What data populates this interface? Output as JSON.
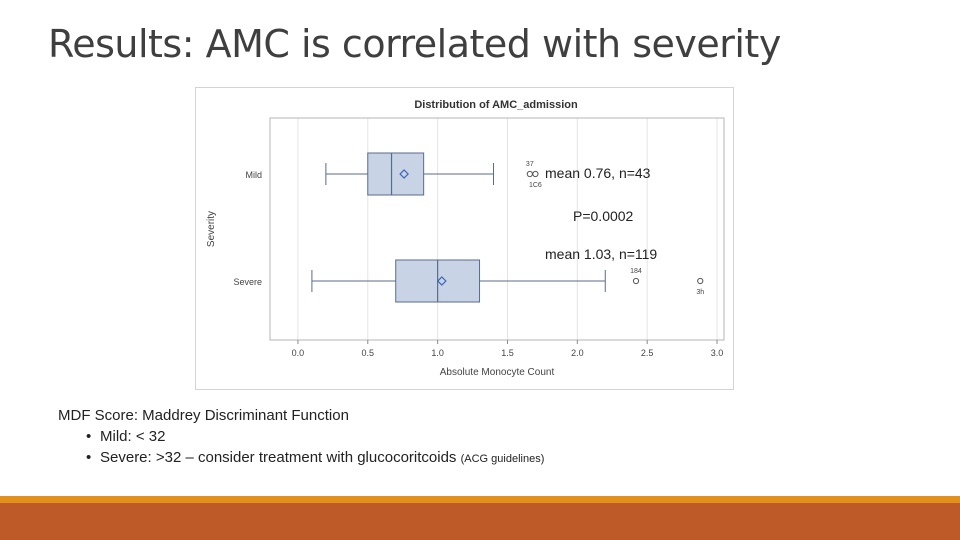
{
  "slide": {
    "title": "Results: AMC is correlated with severity"
  },
  "annotations": {
    "mild_stats": "mean 0.76, n=43",
    "p_value": "P=0.0002",
    "severe_stats": "mean 1.03, n=119"
  },
  "notes": {
    "heading": "MDF Score: Maddrey Discriminant Function",
    "items": [
      {
        "text": "Mild: < 32",
        "small": ""
      },
      {
        "text": "Severe: >32 – consider treatment with glucocoritcoids ",
        "small": "(ACG guidelines)"
      }
    ]
  },
  "colors": {
    "box_fill": "#c8d3e6",
    "box_stroke": "#5a6b8a",
    "mean_marker": "#3a62b8",
    "accent_gold": "#e3901d",
    "accent_rust": "#be5a28"
  },
  "chart_data": {
    "type": "boxplot",
    "title": "Distribution of AMC_admission",
    "xlabel": "Absolute Monocyte Count",
    "ylabel": "Severity",
    "xlim": [
      -0.2,
      3.05
    ],
    "x_ticks": [
      "0.0",
      "0.5",
      "1.0",
      "1.5",
      "2.0",
      "2.5",
      "3.0"
    ],
    "x_tick_values": [
      0,
      0.5,
      1,
      1.5,
      2,
      2.5,
      3
    ],
    "grid": true,
    "groups": [
      {
        "name": "Mild",
        "whisker_low": 0.2,
        "q1": 0.5,
        "median": 0.67,
        "q3": 0.9,
        "whisker_high": 1.4,
        "mean": 0.76,
        "outliers": [
          {
            "x": 1.66,
            "label": "37"
          },
          {
            "x": 1.7,
            "label": ""
          }
        ],
        "outlier_note": "1C6"
      },
      {
        "name": "Severe",
        "whisker_low": 0.1,
        "q1": 0.7,
        "median": 1.0,
        "q3": 1.3,
        "whisker_high": 2.2,
        "mean": 1.03,
        "outliers": [
          {
            "x": 2.42,
            "label": "184"
          },
          {
            "x": 2.88,
            "label": ""
          }
        ],
        "outlier_note": "3h"
      }
    ]
  }
}
